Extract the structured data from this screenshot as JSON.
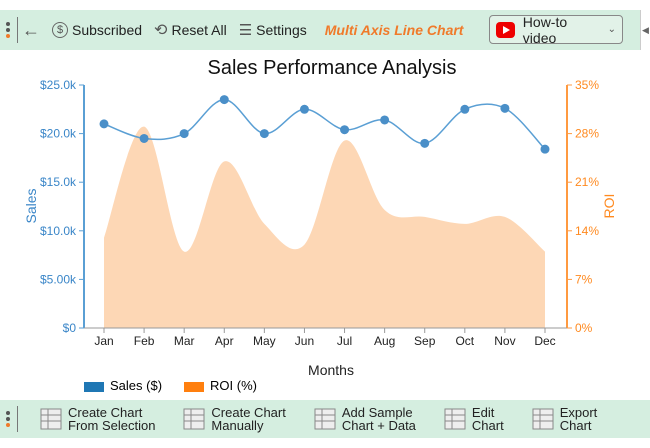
{
  "toolbar": {
    "subscribed": "Subscribed",
    "reset": "Reset All",
    "settings": "Settings",
    "title": "Multi Axis Line Chart",
    "video": "How-to video"
  },
  "legend": [
    {
      "label": "Sales ($)",
      "color": "#1f77b4"
    },
    {
      "label": "ROI (%)",
      "color": "#ff7f0e"
    }
  ],
  "bottom": [
    {
      "l1": "Create Chart",
      "l2": "From Selection",
      "icon": "table-icon"
    },
    {
      "l1": "Create Chart",
      "l2": "Manually",
      "icon": "form-icon"
    },
    {
      "l1": "Add Sample",
      "l2": "Chart + Data",
      "icon": "sample-data-icon"
    },
    {
      "l1": "Edit",
      "l2": "Chart",
      "icon": "edit-chart-icon"
    },
    {
      "l1": "Export",
      "l2": "Chart",
      "icon": "export-chart-icon"
    }
  ],
  "chart_data": {
    "type": "line",
    "title": "Sales Performance Analysis",
    "xlabel": "Months",
    "ylabel": "Sales",
    "y2label": "ROI",
    "categories": [
      "Jan",
      "Feb",
      "Mar",
      "Apr",
      "May",
      "Jun",
      "Jul",
      "Aug",
      "Sep",
      "Oct",
      "Nov",
      "Dec"
    ],
    "series": [
      {
        "name": "Sales ($)",
        "axis": "left",
        "style": "line-markers",
        "color": "#5a9fd4",
        "values": [
          21000,
          19500,
          20000,
          23500,
          20000,
          22500,
          20400,
          21400,
          19000,
          22500,
          22600,
          18400
        ]
      },
      {
        "name": "ROI (%)",
        "axis": "right",
        "style": "area",
        "color": "#fdd7b5",
        "values": [
          13,
          29,
          11,
          24,
          15,
          12,
          27,
          17,
          16,
          15,
          16,
          11
        ]
      }
    ],
    "ylim": [
      0,
      25000
    ],
    "y_ticks": [
      "$0",
      "$5.00k",
      "$10.0k",
      "$15.0k",
      "$20.0k",
      "$25.0k"
    ],
    "y2lim": [
      0,
      35
    ],
    "y2_ticks": [
      "0%",
      "7%",
      "14%",
      "21%",
      "28%",
      "35%"
    ],
    "legend_position": "bottom-left",
    "grid": false
  }
}
